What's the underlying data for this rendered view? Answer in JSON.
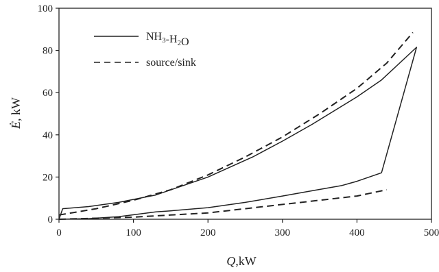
{
  "chart_data": {
    "type": "line",
    "xlabel_var": "Q",
    "xlabel_unit": ",kW",
    "ylabel_var": "Ė",
    "ylabel_unit": ", kW",
    "xlim": [
      0,
      500
    ],
    "ylim": [
      0,
      100
    ],
    "xticks": [
      0,
      100,
      200,
      300,
      400,
      500
    ],
    "yticks": [
      0,
      20,
      40,
      60,
      80,
      100
    ],
    "grid": false,
    "legend_position": "top-left",
    "series": [
      {
        "name": "NH3-H2O",
        "style": "solid",
        "color": "#222222",
        "x": [
          0,
          5,
          40,
          80,
          130,
          200,
          260,
          300,
          340,
          400,
          433,
          480,
          433,
          400,
          380,
          340,
          300,
          250,
          200,
          150,
          130,
          80,
          40,
          0
        ],
        "y": [
          0,
          5,
          6,
          8,
          11.5,
          20,
          29.5,
          37,
          45,
          58,
          66,
          81.5,
          22,
          18,
          16,
          13.5,
          11,
          8,
          5.5,
          4,
          3.5,
          1.2,
          0.3,
          0
        ]
      },
      {
        "name": "source/sink",
        "style": "dashed",
        "color": "#222222",
        "x": [
          0,
          50,
          100,
          150,
          200,
          250,
          300,
          350,
          400,
          440,
          475
        ],
        "y": [
          2,
          5,
          9,
          14,
          21,
          29.5,
          39,
          50,
          62,
          74,
          88.5
        ]
      },
      {
        "name": "source/sink",
        "style": "dashed",
        "color": "#222222",
        "x": [
          0,
          50,
          100,
          150,
          200,
          250,
          300,
          350,
          400,
          440
        ],
        "y": [
          0,
          0.5,
          1,
          2,
          3,
          5,
          7,
          9,
          11,
          14
        ]
      }
    ]
  }
}
